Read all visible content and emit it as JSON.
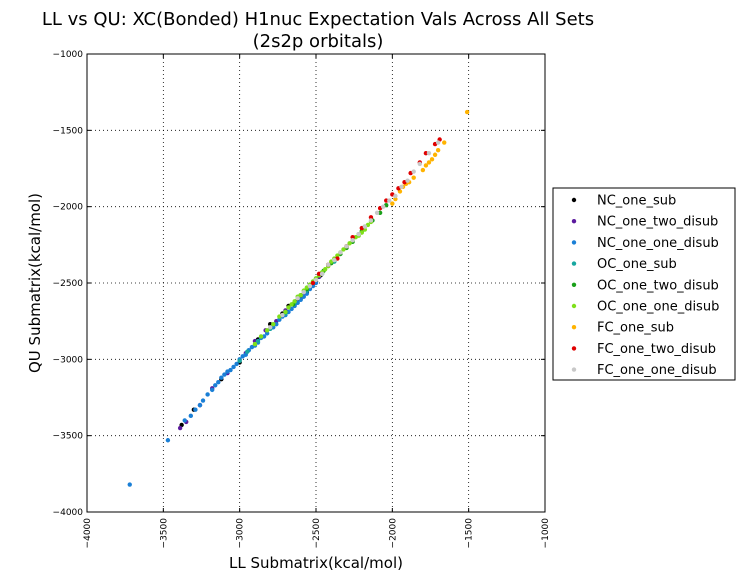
{
  "chart_data": {
    "type": "scatter",
    "title": "LL vs QU: XC(Bonded) H1nuc Expectation Vals Across All Sets",
    "subtitle": "(2s2p orbitals)",
    "xlabel": "LL Submatrix(kcal/mol)",
    "ylabel": "QU Submatrix(kcal/mol)",
    "xlim": [
      -4000,
      -1000
    ],
    "ylim": [
      -4000,
      -1000
    ],
    "xticks": [
      -4000,
      -3500,
      -3000,
      -2500,
      -2000,
      -1500,
      -1000
    ],
    "yticks": [
      -4000,
      -3500,
      -3000,
      -2500,
      -2000,
      -1500,
      -1000
    ],
    "grid": true,
    "legend_position": "right",
    "series": [
      {
        "name": "NC_one_sub",
        "color": "#000000",
        "points": [
          [
            -3380,
            -3430
          ],
          [
            -3300,
            -3330
          ],
          [
            -3120,
            -3130
          ],
          [
            -3000,
            -3020
          ],
          [
            -2880,
            -2870
          ],
          [
            -2800,
            -2770
          ],
          [
            -2720,
            -2700
          ],
          [
            -2680,
            -2650
          ],
          [
            -2620,
            -2610
          ],
          [
            -2560,
            -2560
          ],
          [
            -2500,
            -2490
          ],
          [
            -2470,
            -2450
          ],
          [
            -2540,
            -2530
          ]
        ]
      },
      {
        "name": "NC_one_two_disub",
        "color": "#5b1a9e",
        "points": [
          [
            -3390,
            -3450
          ],
          [
            -3350,
            -3410
          ],
          [
            -3260,
            -3300
          ],
          [
            -3180,
            -3190
          ],
          [
            -3080,
            -3090
          ],
          [
            -2960,
            -2960
          ],
          [
            -2900,
            -2880
          ],
          [
            -2830,
            -2810
          ],
          [
            -2760,
            -2750
          ],
          [
            -2700,
            -2680
          ],
          [
            -2640,
            -2640
          ],
          [
            -2580,
            -2570
          ],
          [
            -2520,
            -2510
          ],
          [
            -2480,
            -2460
          ],
          [
            -2600,
            -2600
          ]
        ]
      },
      {
        "name": "NC_one_one_disub",
        "color": "#1a7fd6",
        "points": [
          [
            -3720,
            -3820
          ],
          [
            -3470,
            -3530
          ],
          [
            -3360,
            -3400
          ],
          [
            -3320,
            -3370
          ],
          [
            -3290,
            -3330
          ],
          [
            -3260,
            -3300
          ],
          [
            -3240,
            -3270
          ],
          [
            -3210,
            -3230
          ],
          [
            -3180,
            -3200
          ],
          [
            -3160,
            -3170
          ],
          [
            -3140,
            -3150
          ],
          [
            -3120,
            -3120
          ],
          [
            -3100,
            -3100
          ],
          [
            -3080,
            -3080
          ],
          [
            -3060,
            -3070
          ],
          [
            -3040,
            -3050
          ],
          [
            -3020,
            -3030
          ],
          [
            -3000,
            -3000
          ],
          [
            -2980,
            -2980
          ],
          [
            -2960,
            -2970
          ],
          [
            -2940,
            -2940
          ],
          [
            -2920,
            -2920
          ],
          [
            -2900,
            -2910
          ],
          [
            -2880,
            -2890
          ],
          [
            -2860,
            -2860
          ],
          [
            -2840,
            -2850
          ],
          [
            -2820,
            -2830
          ],
          [
            -2800,
            -2800
          ],
          [
            -2780,
            -2790
          ],
          [
            -2760,
            -2770
          ],
          [
            -2740,
            -2740
          ],
          [
            -2720,
            -2720
          ],
          [
            -2700,
            -2710
          ],
          [
            -2680,
            -2690
          ],
          [
            -2660,
            -2670
          ],
          [
            -2640,
            -2650
          ],
          [
            -2620,
            -2630
          ],
          [
            -2600,
            -2610
          ],
          [
            -2580,
            -2590
          ],
          [
            -2560,
            -2570
          ],
          [
            -2540,
            -2540
          ],
          [
            -2520,
            -2520
          ],
          [
            -2500,
            -2500
          ]
        ]
      },
      {
        "name": "OC_one_sub",
        "color": "#17a7a0",
        "points": [
          [
            -3000,
            -3010
          ],
          [
            -2950,
            -2950
          ],
          [
            -2880,
            -2880
          ],
          [
            -2800,
            -2800
          ],
          [
            -2700,
            -2700
          ],
          [
            -2640,
            -2630
          ],
          [
            -2560,
            -2550
          ],
          [
            -2460,
            -2440
          ],
          [
            -2380,
            -2360
          ]
        ]
      },
      {
        "name": "OC_one_two_disub",
        "color": "#1aa01a",
        "points": [
          [
            -2700,
            -2690
          ],
          [
            -2650,
            -2640
          ],
          [
            -2600,
            -2580
          ],
          [
            -2560,
            -2540
          ],
          [
            -2500,
            -2470
          ],
          [
            -2450,
            -2420
          ],
          [
            -2400,
            -2370
          ],
          [
            -2340,
            -2310
          ],
          [
            -2300,
            -2270
          ],
          [
            -2260,
            -2230
          ],
          [
            -2220,
            -2180
          ],
          [
            -2200,
            -2160
          ],
          [
            -2180,
            -2130
          ],
          [
            -2130,
            -2090
          ],
          [
            -2080,
            -2040
          ],
          [
            -2040,
            -1990
          ]
        ]
      },
      {
        "name": "OC_one_one_disub",
        "color": "#7fe01a",
        "points": [
          [
            -2900,
            -2900
          ],
          [
            -2860,
            -2850
          ],
          [
            -2820,
            -2810
          ],
          [
            -2780,
            -2770
          ],
          [
            -2740,
            -2720
          ],
          [
            -2700,
            -2690
          ],
          [
            -2680,
            -2660
          ],
          [
            -2660,
            -2640
          ],
          [
            -2640,
            -2620
          ],
          [
            -2620,
            -2590
          ],
          [
            -2600,
            -2580
          ],
          [
            -2580,
            -2550
          ],
          [
            -2560,
            -2530
          ],
          [
            -2540,
            -2510
          ],
          [
            -2520,
            -2490
          ],
          [
            -2500,
            -2470
          ],
          [
            -2480,
            -2450
          ],
          [
            -2460,
            -2430
          ],
          [
            -2440,
            -2410
          ],
          [
            -2420,
            -2390
          ],
          [
            -2400,
            -2360
          ],
          [
            -2380,
            -2340
          ],
          [
            -2360,
            -2320
          ],
          [
            -2340,
            -2300
          ],
          [
            -2320,
            -2280
          ],
          [
            -2300,
            -2260
          ],
          [
            -2280,
            -2240
          ],
          [
            -2260,
            -2220
          ],
          [
            -2240,
            -2200
          ],
          [
            -2220,
            -2190
          ],
          [
            -2200,
            -2170
          ],
          [
            -2180,
            -2150
          ],
          [
            -2160,
            -2120
          ],
          [
            -2140,
            -2100
          ]
        ]
      },
      {
        "name": "FC_one_sub",
        "color": "#ffb300",
        "points": [
          [
            -1510,
            -1380
          ],
          [
            -1660,
            -1580
          ],
          [
            -1700,
            -1630
          ],
          [
            -1720,
            -1660
          ],
          [
            -1740,
            -1690
          ],
          [
            -1760,
            -1710
          ],
          [
            -1780,
            -1730
          ],
          [
            -1800,
            -1760
          ],
          [
            -1860,
            -1810
          ],
          [
            -1890,
            -1840
          ],
          [
            -1910,
            -1850
          ],
          [
            -1930,
            -1870
          ],
          [
            -1950,
            -1900
          ],
          [
            -1980,
            -1950
          ],
          [
            -2000,
            -1980
          ]
        ]
      },
      {
        "name": "FC_one_two_disub",
        "color": "#e00000",
        "points": [
          [
            -1690,
            -1560
          ],
          [
            -1720,
            -1590
          ],
          [
            -1780,
            -1650
          ],
          [
            -1820,
            -1710
          ],
          [
            -1880,
            -1780
          ],
          [
            -1920,
            -1840
          ],
          [
            -1960,
            -1880
          ],
          [
            -2000,
            -1920
          ],
          [
            -2040,
            -1960
          ],
          [
            -2080,
            -2010
          ],
          [
            -2140,
            -2070
          ],
          [
            -2200,
            -2140
          ],
          [
            -2260,
            -2200
          ],
          [
            -2300,
            -2260
          ],
          [
            -2360,
            -2340
          ],
          [
            -2420,
            -2380
          ],
          [
            -2480,
            -2440
          ],
          [
            -2520,
            -2500
          ]
        ]
      },
      {
        "name": "FC_one_one_disub",
        "color": "#c8c8c8",
        "points": [
          [
            -1700,
            -1580
          ],
          [
            -1760,
            -1650
          ],
          [
            -1820,
            -1720
          ],
          [
            -1860,
            -1770
          ],
          [
            -1900,
            -1830
          ],
          [
            -1940,
            -1870
          ],
          [
            -1980,
            -1930
          ],
          [
            -2020,
            -1960
          ],
          [
            -2060,
            -2000
          ],
          [
            -2100,
            -2040
          ],
          [
            -2140,
            -2090
          ],
          [
            -2180,
            -2130
          ],
          [
            -2220,
            -2180
          ],
          [
            -2260,
            -2220
          ],
          [
            -2300,
            -2260
          ],
          [
            -2340,
            -2300
          ],
          [
            -2380,
            -2350
          ],
          [
            -2420,
            -2380
          ],
          [
            -2460,
            -2440
          ],
          [
            -2500,
            -2480
          ],
          [
            -2540,
            -2520
          ],
          [
            -2580,
            -2560
          ],
          [
            -2620,
            -2600
          ],
          [
            -2720,
            -2710
          ],
          [
            -2800,
            -2790
          ]
        ]
      }
    ]
  }
}
